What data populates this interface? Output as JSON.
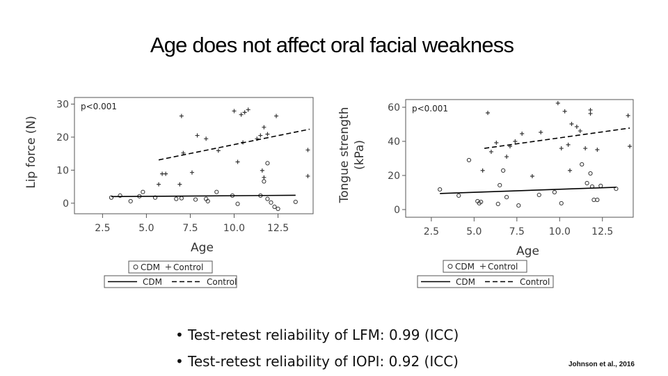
{
  "slide": {
    "title": "Age does not affect oral facial weakness",
    "bullets": [
      "Test-retest reliability of LFM: 0.99 (ICC)",
      "Test-retest reliability of IOPI: 0.92 (ICC)"
    ],
    "citation": "Johnson et al., 2016"
  },
  "chart_data": [
    {
      "type": "scatter",
      "annotation": "p<0.001",
      "xlabel": "Age",
      "ylabel": [
        "Lip force (N)"
      ],
      "xlim": [
        0.9,
        14.5
      ],
      "ylim": [
        -3.2,
        32
      ],
      "xticks": [
        2.5,
        {
          "value": 5,
          "label": "5.0"
        },
        7.5,
        {
          "value": 10,
          "label": "10.0"
        },
        12.5
      ],
      "yticks": [
        0,
        10,
        20,
        30
      ],
      "series": [
        {
          "name": "CDM",
          "marker": "circle",
          "color": "#333333",
          "x": [
            3.0,
            3.5,
            4.1,
            4.6,
            4.8,
            5.5,
            6.7,
            7.0,
            7.8,
            8.4,
            8.5,
            9.0,
            9.9,
            10.2,
            11.5,
            11.7,
            11.9,
            11.9,
            12.1,
            12.3,
            12.5,
            13.5
          ],
          "values": [
            1.7,
            2.3,
            0.6,
            2.1,
            3.4,
            1.7,
            1.3,
            1.5,
            1.1,
            1.3,
            0.6,
            3.4,
            2.3,
            -0.2,
            2.3,
            6.6,
            12.1,
            1.3,
            0.2,
            -1.1,
            -1.7,
            0.4
          ]
        },
        {
          "name": "Control",
          "marker": "plus",
          "color": "#333333",
          "x": [
            7.0,
            7.9,
            8.4,
            5.7,
            5.9,
            6.1,
            6.9,
            7.1,
            7.6,
            9.1,
            10.0,
            10.2,
            10.4,
            10.6,
            10.8,
            10.5,
            11.3,
            11.5,
            11.7,
            11.9,
            11.6,
            11.7,
            12.4,
            14.2,
            14.2
          ],
          "values": [
            26.4,
            20.5,
            19.5,
            5.7,
            8.9,
            8.9,
            5.7,
            15.2,
            9.3,
            15.9,
            27.9,
            12.5,
            26.8,
            27.5,
            28.3,
            18.4,
            19.5,
            20.5,
            23.0,
            20.9,
            9.9,
            7.8,
            26.4,
            16.1,
            8.2
          ]
        },
        {
          "name": "CDM",
          "line": "solid",
          "color": "#000000",
          "x": [
            3.0,
            13.5
          ],
          "values": [
            2.0,
            2.4
          ]
        },
        {
          "name": "Control",
          "line": "dashed",
          "color": "#000000",
          "x": [
            5.7,
            14.3
          ],
          "values": [
            13.1,
            22.4
          ]
        }
      ]
    },
    {
      "type": "scatter",
      "annotation": "p<0.001",
      "xlabel": "Age",
      "ylabel": [
        "Tongue strength",
        "(kPa)"
      ],
      "xlim": [
        1.0,
        14.3
      ],
      "ylim": [
        -4.5,
        64.5
      ],
      "xticks": [
        2.5,
        {
          "value": 5,
          "label": "5.0"
        },
        7.5,
        {
          "value": 10,
          "label": "10.0"
        },
        12.5
      ],
      "yticks": [
        0,
        20,
        40,
        60
      ],
      "series": [
        {
          "name": "CDM",
          "marker": "circle",
          "color": "#333333",
          "x": [
            3.0,
            4.1,
            4.7,
            5.2,
            5.3,
            5.4,
            6.4,
            6.5,
            6.7,
            6.9,
            7.6,
            8.8,
            9.7,
            10.1,
            11.3,
            11.6,
            11.8,
            11.9,
            12.0,
            12.2,
            12.4,
            13.3
          ],
          "values": [
            11.8,
            8.2,
            29.0,
            4.9,
            3.7,
            4.5,
            3.3,
            14.3,
            22.9,
            7.3,
            2.4,
            8.6,
            10.2,
            3.7,
            26.5,
            15.5,
            21.2,
            13.5,
            5.7,
            5.7,
            13.9,
            12.2
          ]
        },
        {
          "name": "Control",
          "marker": "plus",
          "color": "#333333",
          "x": [
            5.8,
            5.5,
            6.0,
            6.3,
            6.9,
            7.1,
            7.4,
            7.8,
            8.9,
            8.4,
            9.9,
            10.1,
            10.3,
            10.5,
            10.7,
            11.0,
            11.2,
            11.5,
            11.8,
            11.8,
            12.2,
            14.0,
            14.1,
            10.6
          ],
          "values": [
            56.7,
            22.9,
            33.9,
            39.2,
            31.0,
            37.1,
            40.0,
            44.5,
            45.3,
            19.6,
            62.4,
            35.9,
            57.6,
            38.0,
            50.2,
            48.6,
            46.1,
            35.9,
            58.4,
            56.3,
            35.1,
            55.1,
            37.1,
            22.9
          ]
        },
        {
          "name": "CDM",
          "line": "solid",
          "color": "#000000",
          "x": [
            3.0,
            13.3
          ],
          "values": [
            9.4,
            13.1
          ]
        },
        {
          "name": "Control",
          "line": "dashed",
          "color": "#000000",
          "x": [
            5.6,
            14.1
          ],
          "values": [
            35.9,
            47.8
          ]
        }
      ]
    }
  ]
}
